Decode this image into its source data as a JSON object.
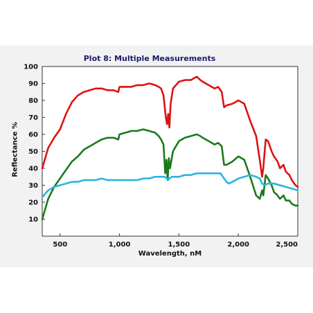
{
  "chart_data": {
    "type": "line",
    "title": "Plot 8: Multiple Measurements",
    "xlabel": "Wavelength, nM",
    "ylabel": "Reflectance %",
    "xlim": [
      350,
      2500
    ],
    "ylim": [
      0,
      100
    ],
    "x_ticks": [
      500,
      1000,
      1500,
      2000,
      2500
    ],
    "x_tick_labels": [
      "500",
      "1,000",
      "1,500",
      "2,000",
      "2,500"
    ],
    "y_ticks": [
      10,
      20,
      30,
      40,
      50,
      60,
      70,
      80,
      90,
      100
    ],
    "y_tick_labels": [
      "10",
      "20",
      "30",
      "40",
      "50",
      "60",
      "70",
      "80",
      "90",
      "100"
    ],
    "grid": false,
    "series": [
      {
        "color": "#dd1111",
        "x": [
          350,
          400,
          450,
          500,
          550,
          600,
          650,
          700,
          750,
          800,
          850,
          900,
          950,
          990,
          1000,
          1050,
          1100,
          1150,
          1200,
          1250,
          1300,
          1330,
          1350,
          1370,
          1390,
          1400,
          1410,
          1420,
          1430,
          1450,
          1500,
          1550,
          1600,
          1650,
          1680,
          1700,
          1750,
          1800,
          1830,
          1860,
          1880,
          1900,
          1950,
          2000,
          2050,
          2100,
          2150,
          2180,
          2200,
          2210,
          2230,
          2250,
          2280,
          2300,
          2330,
          2350,
          2380,
          2400,
          2430,
          2450,
          2480,
          2500
        ],
        "y": [
          40,
          52,
          58,
          63,
          72,
          79,
          83,
          85,
          86,
          87,
          87,
          86,
          86,
          85,
          88,
          88,
          88,
          89,
          89,
          90,
          89,
          88,
          87,
          83,
          70,
          66,
          72,
          64,
          78,
          87,
          91,
          92,
          92,
          94,
          92,
          91,
          89,
          87,
          88,
          85,
          76,
          77,
          78,
          80,
          78,
          68,
          59,
          45,
          35,
          40,
          57,
          56,
          50,
          47,
          44,
          40,
          42,
          38,
          36,
          33,
          30,
          29
        ]
      },
      {
        "color": "#1a7a1a",
        "x": [
          350,
          400,
          450,
          500,
          550,
          600,
          650,
          700,
          750,
          800,
          850,
          900,
          950,
          990,
          1000,
          1050,
          1100,
          1150,
          1200,
          1250,
          1300,
          1330,
          1350,
          1370,
          1385,
          1395,
          1405,
          1415,
          1425,
          1450,
          1500,
          1550,
          1600,
          1650,
          1680,
          1700,
          1750,
          1800,
          1830,
          1860,
          1880,
          1900,
          1950,
          2000,
          2050,
          2100,
          2150,
          2180,
          2200,
          2210,
          2230,
          2250,
          2280,
          2300,
          2330,
          2350,
          2380,
          2400,
          2430,
          2450,
          2480,
          2500
        ],
        "y": [
          10,
          22,
          29,
          34,
          39,
          44,
          47,
          51,
          53,
          55,
          57,
          58,
          58,
          57,
          60,
          61,
          62,
          62,
          63,
          62,
          61,
          59,
          57,
          54,
          37,
          45,
          33,
          46,
          40,
          50,
          56,
          58,
          59,
          60,
          59,
          58,
          56,
          54,
          55,
          53,
          42,
          42,
          44,
          47,
          45,
          35,
          24,
          22,
          27,
          24,
          36,
          34,
          30,
          26,
          24,
          22,
          24,
          21,
          21,
          19,
          18,
          18
        ]
      },
      {
        "color": "#2ab4e0",
        "x": [
          350,
          400,
          450,
          500,
          550,
          600,
          650,
          700,
          750,
          800,
          850,
          900,
          950,
          1000,
          1050,
          1100,
          1150,
          1200,
          1250,
          1300,
          1350,
          1380,
          1400,
          1410,
          1420,
          1440,
          1500,
          1550,
          1600,
          1650,
          1700,
          1750,
          1800,
          1850,
          1880,
          1900,
          1920,
          1950,
          2000,
          2050,
          2100,
          2150,
          2180,
          2200,
          2220,
          2250,
          2300,
          2350,
          2400,
          2450,
          2500
        ],
        "y": [
          23,
          27,
          29,
          30,
          31,
          32,
          32,
          33,
          33,
          33,
          34,
          33,
          33,
          33,
          33,
          33,
          33,
          34,
          34,
          35,
          35,
          35,
          34,
          33,
          34,
          35,
          35,
          36,
          36,
          37,
          37,
          37,
          37,
          37,
          34,
          32,
          31,
          32,
          34,
          35,
          36,
          35,
          34,
          31,
          30,
          31,
          31,
          30,
          29,
          28,
          27
        ]
      }
    ]
  }
}
